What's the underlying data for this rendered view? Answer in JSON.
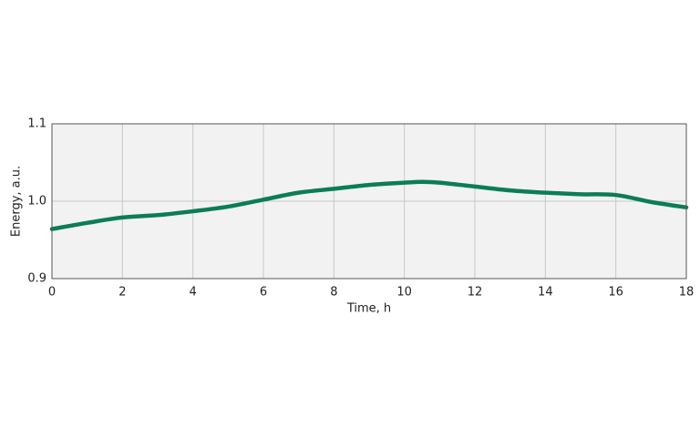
{
  "chart_data": {
    "type": "line",
    "x_label": "Time, h",
    "y_label": "Energy, a.u.",
    "x": [
      0,
      1,
      2,
      3,
      4,
      5,
      6,
      7,
      8,
      9,
      10,
      10.5,
      11,
      12,
      13,
      14,
      15,
      16,
      17,
      18
    ],
    "series": [
      {
        "name": "Energy",
        "color": "#0b7d55",
        "values": [
          0.964,
          0.972,
          0.979,
          0.982,
          0.987,
          0.993,
          1.002,
          1.011,
          1.016,
          1.021,
          1.024,
          1.025,
          1.024,
          1.019,
          1.014,
          1.011,
          1.009,
          1.008,
          0.999,
          0.992
        ]
      }
    ],
    "xlim": [
      0,
      18
    ],
    "xticks": [
      0,
      2,
      4,
      6,
      8,
      10,
      12,
      14,
      16,
      18
    ],
    "ylim": [
      0.9,
      1.1
    ],
    "yticks": [
      0.9,
      {
        "value": 1.0,
        "label": "1.0"
      },
      1.1
    ],
    "grid": true
  }
}
